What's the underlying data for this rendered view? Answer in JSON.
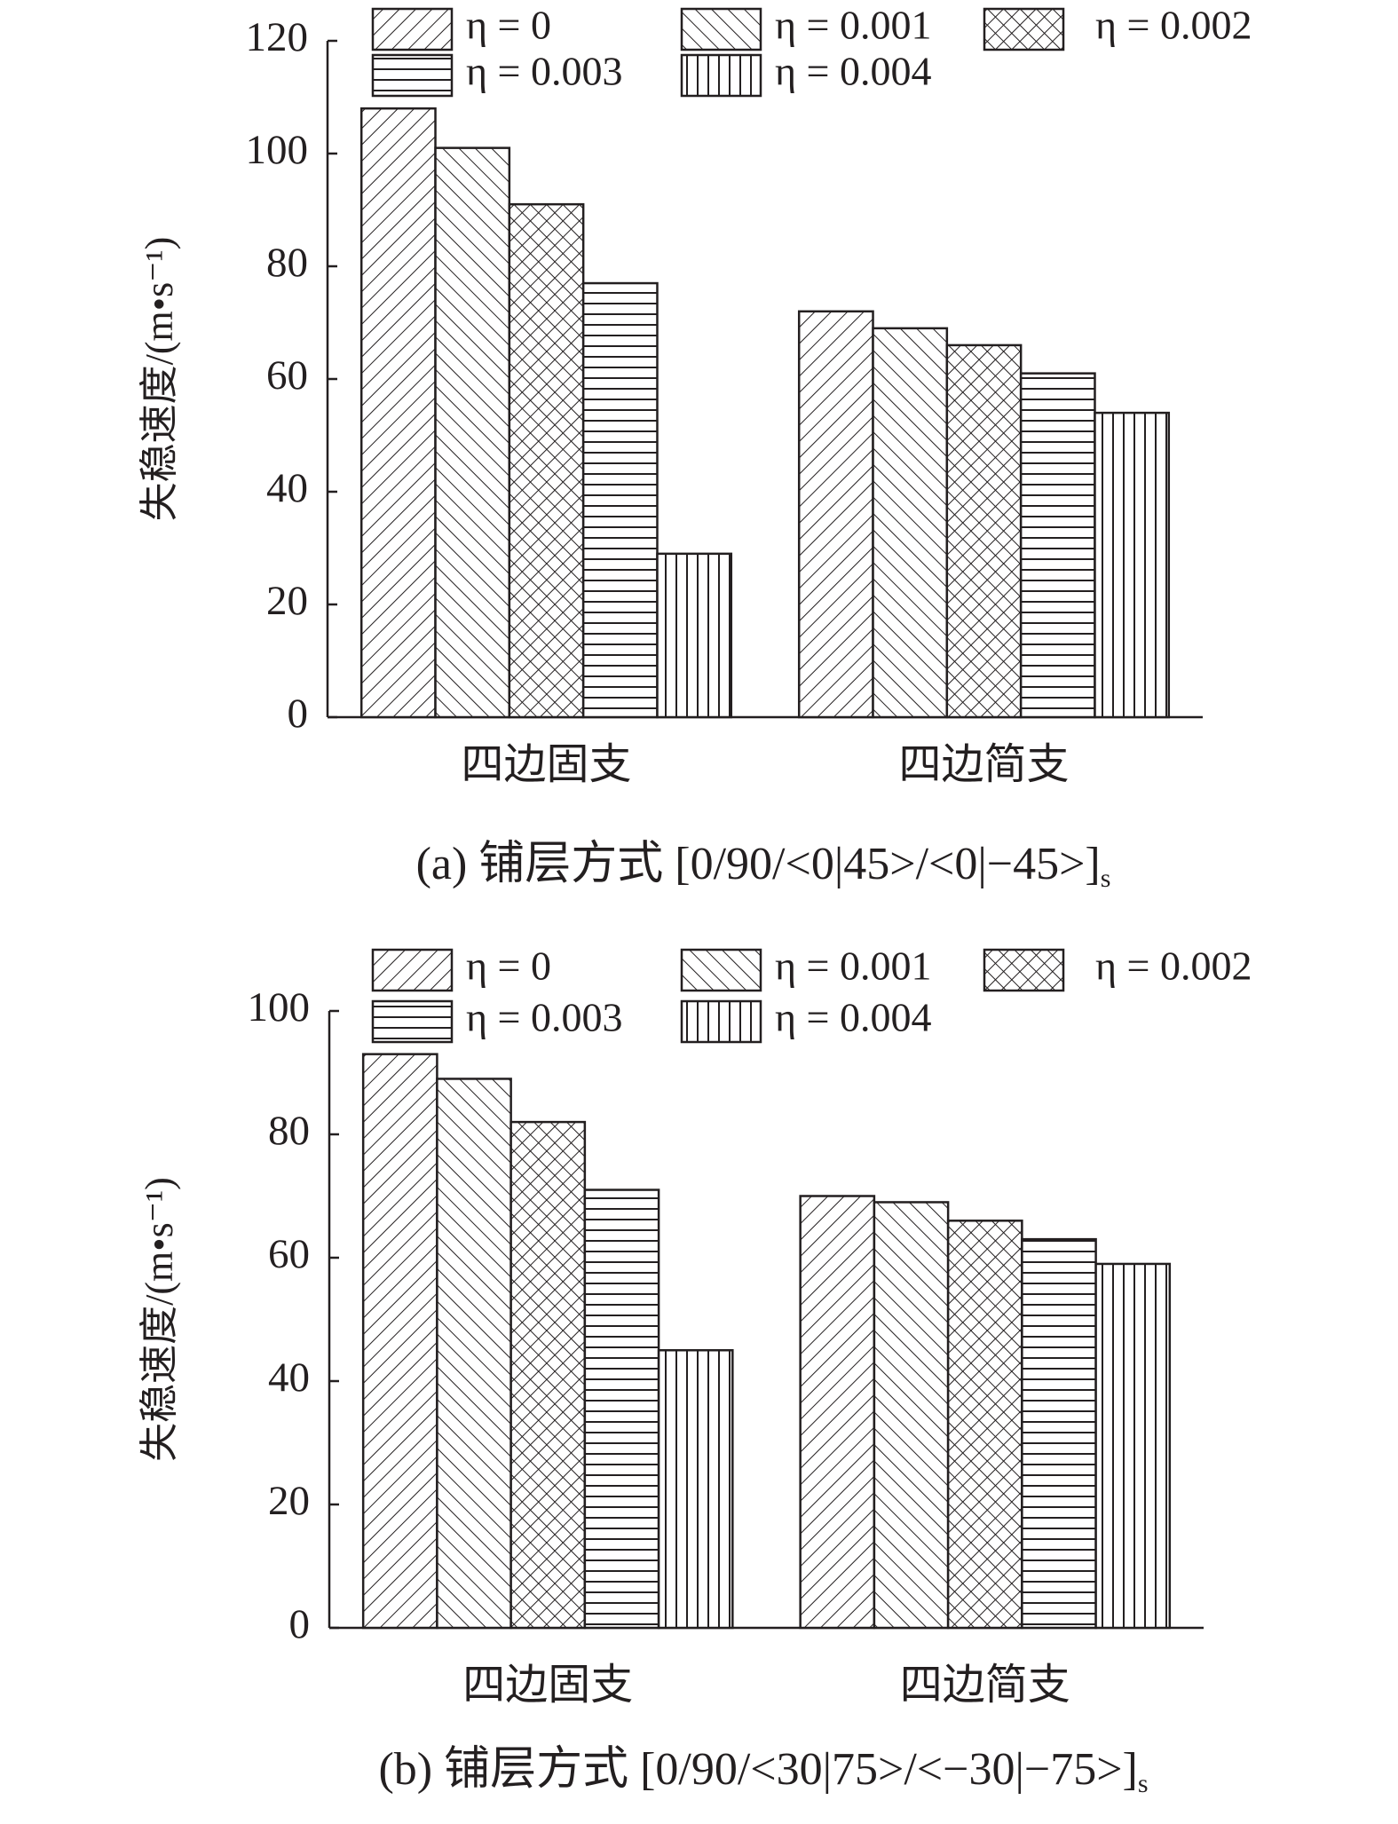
{
  "chart_data": [
    {
      "type": "bar",
      "caption": "(a) 铺层方式 [0/90/<0|45>/<0|−45>]",
      "caption_subscript": "s",
      "y_label": "失稳速度/(m•s⁻¹)",
      "categories": [
        "四边固支",
        "四边简支"
      ],
      "ylim": [
        0,
        120
      ],
      "yticks": [
        0,
        20,
        40,
        60,
        80,
        100,
        120
      ],
      "series": [
        {
          "name": "η = 0",
          "color": "#231f20",
          "pattern": "diagonal-up",
          "values": [
            108,
            72
          ]
        },
        {
          "name": "η = 0.001",
          "color": "#231f20",
          "pattern": "diagonal-down",
          "values": [
            101,
            69
          ]
        },
        {
          "name": "η = 0.002",
          "color": "#231f20",
          "pattern": "crosshatch",
          "values": [
            91,
            66
          ]
        },
        {
          "name": "η = 0.003",
          "color": "#231f20",
          "pattern": "horizontal",
          "values": [
            77,
            61
          ]
        },
        {
          "name": "η = 0.004",
          "color": "#231f20",
          "pattern": "vertical",
          "values": [
            29,
            54
          ]
        }
      ]
    },
    {
      "type": "bar",
      "caption": "(b) 铺层方式 [0/90/<30|75>/<−30|−75>]",
      "caption_subscript": "s",
      "y_label": "失稳速度/(m•s⁻¹)",
      "categories": [
        "四边固支",
        "四边简支"
      ],
      "ylim": [
        0,
        100
      ],
      "yticks": [
        0,
        20,
        40,
        60,
        80,
        100
      ],
      "series": [
        {
          "name": "η = 0",
          "color": "#231f20",
          "pattern": "diagonal-up",
          "values": [
            93,
            70
          ]
        },
        {
          "name": "η = 0.001",
          "color": "#231f20",
          "pattern": "diagonal-down",
          "values": [
            89,
            69
          ]
        },
        {
          "name": "η = 0.002",
          "color": "#231f20",
          "pattern": "crosshatch",
          "values": [
            82,
            66
          ]
        },
        {
          "name": "η = 0.003",
          "color": "#231f20",
          "pattern": "horizontal",
          "values": [
            71,
            63
          ]
        },
        {
          "name": "η = 0.004",
          "color": "#231f20",
          "pattern": "vertical",
          "values": [
            45,
            59
          ]
        }
      ]
    }
  ]
}
